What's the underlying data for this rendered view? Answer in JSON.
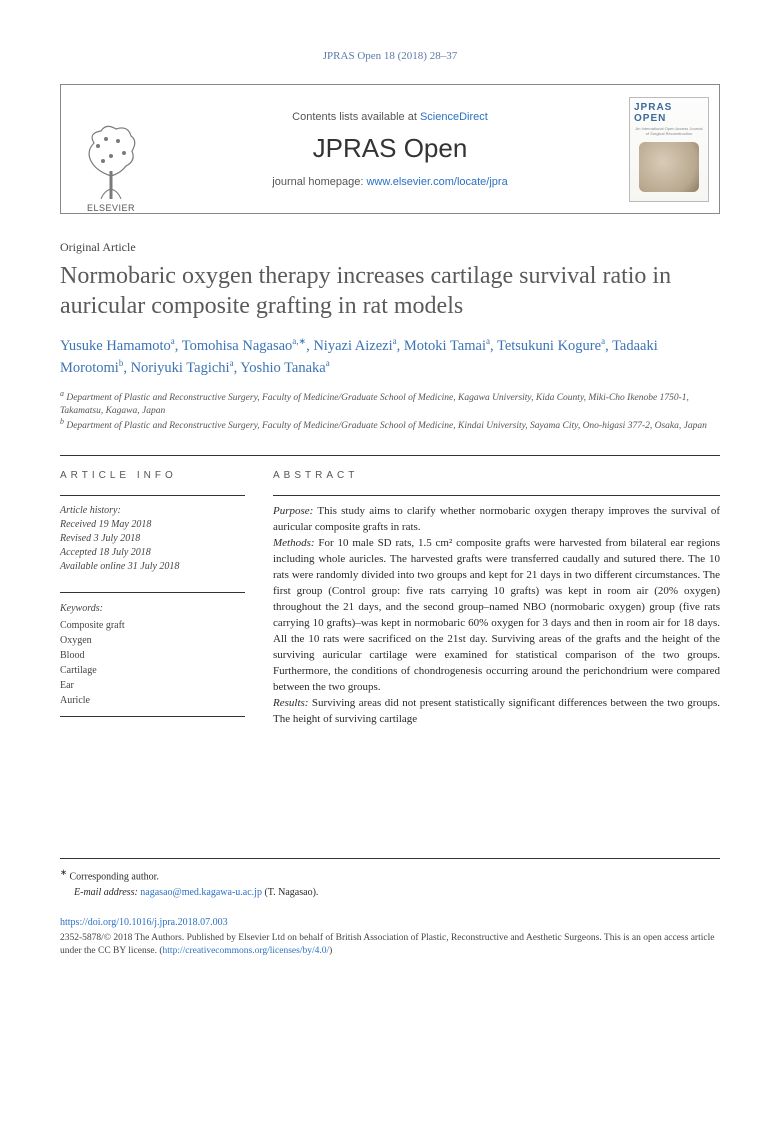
{
  "running_head": "JPRAS Open 18 (2018) 28–37",
  "header": {
    "publisher": "ELSEVIER",
    "contents_text": "Contents lists available at ",
    "contents_link": "ScienceDirect",
    "journal_name": "JPRAS Open",
    "homepage_text": "journal homepage: ",
    "homepage_link": "www.elsevier.com/locate/jpra",
    "cover_title": "JPRAS OPEN",
    "cover_sub": "An International Open Access Journal of Surgical Reconstruction"
  },
  "article": {
    "type": "Original Article",
    "title": "Normobaric oxygen therapy increases cartilage survival ratio in auricular composite grafting in rat models",
    "authors_html_parts": [
      {
        "name": "Yusuke Hamamoto",
        "sup": "a"
      },
      {
        "name": "Tomohisa Nagasao",
        "sup": "a,∗"
      },
      {
        "name": "Niyazi Aizezi",
        "sup": "a"
      },
      {
        "name": "Motoki Tamai",
        "sup": "a"
      },
      {
        "name": "Tetsukuni Kogure",
        "sup": "a"
      },
      {
        "name": "Tadaaki Morotomi",
        "sup": "b"
      },
      {
        "name": "Noriyuki Tagichi",
        "sup": "a"
      },
      {
        "name": "Yoshio Tanaka",
        "sup": "a"
      }
    ],
    "affiliations": {
      "a": "Department of Plastic and Reconstructive Surgery, Faculty of Medicine/Graduate School of Medicine, Kagawa University, Kida County, Miki-Cho Ikenobe 1750-1, Takamatsu, Kagawa, Japan",
      "b": "Department of Plastic and Reconstructive Surgery, Faculty of Medicine/Graduate School of Medicine, Kindai University, Sayama City, Ono-higasi 377-2, Osaka, Japan"
    }
  },
  "info": {
    "heading": "article info",
    "history_label": "Article history:",
    "received": "Received 19 May 2018",
    "revised": "Revised 3 July 2018",
    "accepted": "Accepted 18 July 2018",
    "online": "Available online 31 July 2018",
    "keywords_label": "Keywords:",
    "keywords": [
      "Composite graft",
      "Oxygen",
      "Blood",
      "Cartilage",
      "Ear",
      "Auricle"
    ]
  },
  "abstract": {
    "heading": "abstract",
    "purpose_label": "Purpose:",
    "purpose": " This study aims to clarify whether normobaric oxygen therapy improves the survival of auricular composite grafts in rats.",
    "methods_label": "Methods:",
    "methods": " For 10 male SD rats, 1.5 cm² composite grafts were harvested from bilateral ear regions including whole auricles. The harvested grafts were transferred caudally and sutured there. The 10 rats were randomly divided into two groups and kept for 21 days in two different circumstances. The first group (Control group: five rats carrying 10 grafts) was kept in room air (20% oxygen) throughout the 21 days, and the second group–named NBO (normobaric oxygen) group (five rats carrying 10 grafts)–was kept in normobaric 60% oxygen for 3 days and then in room air for 18 days. All the 10 rats were sacrificed on the 21st day. Surviving areas of the grafts and the height of the surviving auricular cartilage were examined for statistical comparison of the two groups. Furthermore, the conditions of chondrogenesis occurring around the perichondrium were compared between the two groups.",
    "results_label": "Results:",
    "results": " Surviving areas did not present statistically significant differences between the two groups. The height of surviving cartilage"
  },
  "footer": {
    "corr_marker": "∗",
    "corr_text": "Corresponding author.",
    "email_label": "E-mail address:",
    "email": "nagasao@med.kagawa-u.ac.jp",
    "email_person": "(T. Nagasao).",
    "doi": "https://doi.org/10.1016/j.jpra.2018.07.003",
    "copyright": "2352-5878/© 2018 The Authors. Published by Elsevier Ltd on behalf of British Association of Plastic, Reconstructive and Aesthetic Surgeons. This is an open access article under the CC BY license. (",
    "cc_link": "http://creativecommons.org/licenses/by/4.0/",
    "copyright_end": ")"
  },
  "colors": {
    "link": "#2b71c4",
    "author": "#3b73b5",
    "heading_gray": "#5a5a5a",
    "rule": "#333333"
  }
}
